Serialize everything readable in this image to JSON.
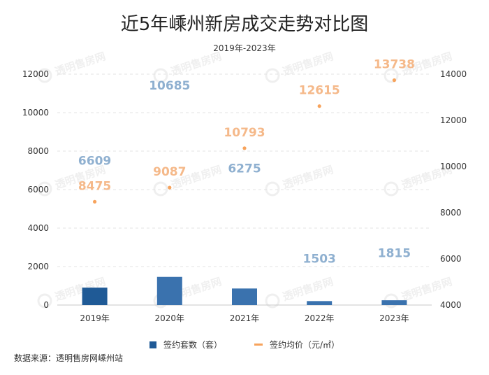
{
  "title": "近5年嵊州新房成交走势对比图",
  "subtitle": "2019年-2023年",
  "source": "数据来源：透明售房网嵊州站",
  "watermark": "透明售房网",
  "colors": {
    "bar": "#1f5a96",
    "bar_light": "#3a72ae",
    "line": "#f7a35c",
    "bar_label": "#8fb0d0",
    "line_label": "#f5b98a",
    "grid": "#e3e3e3"
  },
  "chart_data": {
    "type": "bar",
    "categories": [
      "2019年",
      "2020年",
      "2021年",
      "2022年",
      "2023年"
    ],
    "series": [
      {
        "name": "签约套数（套）",
        "type": "bar",
        "axis": "left",
        "values": [
          6609,
          10685,
          6275,
          1503,
          1815
        ]
      },
      {
        "name": "签约均价（元/㎡）",
        "type": "line",
        "axis": "right",
        "values": [
          8475,
          9087,
          10793,
          12615,
          13738
        ]
      }
    ],
    "y_left": {
      "min": 0,
      "max": 12000,
      "ticks": [
        0,
        2000,
        4000,
        6000,
        8000,
        10000,
        12000
      ]
    },
    "y_right": {
      "min": 4000,
      "max": 14000,
      "ticks": [
        4000,
        6000,
        8000,
        10000,
        12000,
        14000
      ]
    },
    "grid": true,
    "legend": "bottom"
  }
}
